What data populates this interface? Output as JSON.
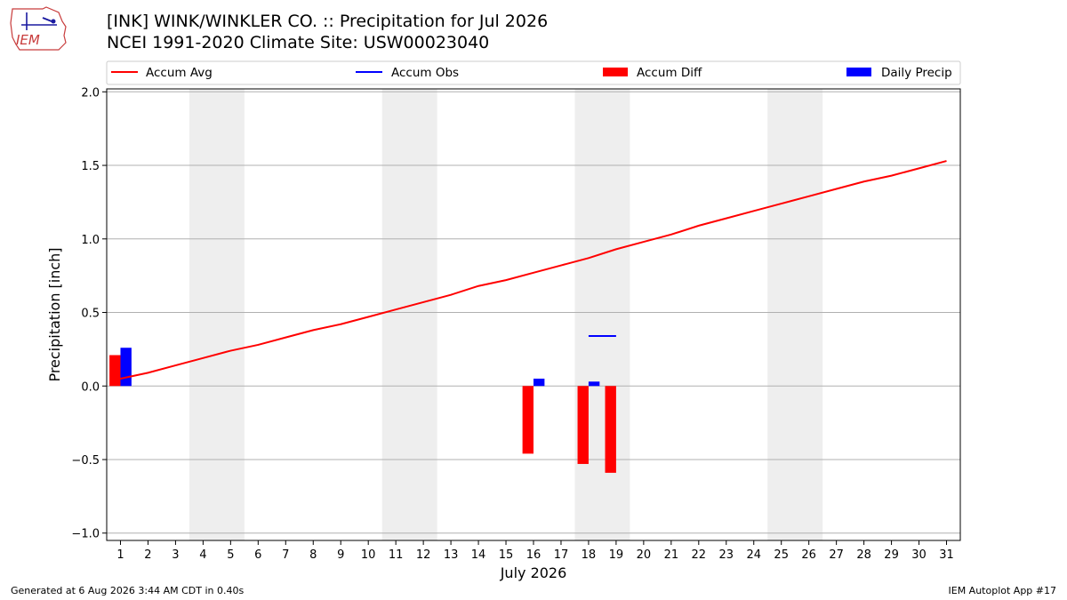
{
  "header": {
    "title_line1": "[INK] WINK/WINKLER CO. :: Precipitation for Jul 2026",
    "title_line2": "NCEI 1991-2020 Climate Site: USW00023040",
    "logo_text": "IEM"
  },
  "footer": {
    "generated": "Generated at 6 Aug 2026 3:44 AM CDT in 0.40s",
    "app": "IEM Autoplot App #17"
  },
  "colors": {
    "accum_avg": "#ff0000",
    "accum_obs": "#0000ff",
    "accum_diff": "#ff0000",
    "daily_precip": "#0000ff",
    "weekend": "#eeeeee",
    "grid": "#b0b0b0"
  },
  "chart_data": {
    "type": "bar",
    "xlabel": "July 2026",
    "ylabel": "Precipitation [inch]",
    "ylim": [
      -1.05,
      2.02
    ],
    "yticks": [
      -1.0,
      -0.5,
      0.0,
      0.5,
      1.0,
      1.5,
      2.0
    ],
    "ytick_labels": [
      "−1.0",
      "−0.5",
      "0.0",
      "0.5",
      "1.0",
      "1.5",
      "2.0"
    ],
    "xlim": [
      0.5,
      31.5
    ],
    "days": [
      1,
      2,
      3,
      4,
      5,
      6,
      7,
      8,
      9,
      10,
      11,
      12,
      13,
      14,
      15,
      16,
      17,
      18,
      19,
      20,
      21,
      22,
      23,
      24,
      25,
      26,
      27,
      28,
      29,
      30,
      31
    ],
    "weekend_spans": [
      [
        4,
        5
      ],
      [
        11,
        12
      ],
      [
        18,
        19
      ],
      [
        25,
        26
      ]
    ],
    "grid": "horizontal",
    "legend": {
      "placement": "top",
      "entries": [
        {
          "label": "Accum Avg",
          "kind": "line",
          "color": "#ff0000"
        },
        {
          "label": "Accum Obs",
          "kind": "line",
          "color": "#0000ff"
        },
        {
          "label": "Accum Diff",
          "kind": "bar",
          "color": "#ff0000"
        },
        {
          "label": "Daily Precip",
          "kind": "bar",
          "color": "#0000ff"
        }
      ]
    },
    "series": [
      {
        "name": "Accum Avg",
        "kind": "line",
        "x": [
          1,
          2,
          3,
          4,
          5,
          6,
          7,
          8,
          9,
          10,
          11,
          12,
          13,
          14,
          15,
          16,
          17,
          18,
          19,
          20,
          21,
          22,
          23,
          24,
          25,
          26,
          27,
          28,
          29,
          30,
          31
        ],
        "values": [
          0.05,
          0.09,
          0.14,
          0.19,
          0.24,
          0.28,
          0.33,
          0.38,
          0.42,
          0.47,
          0.52,
          0.57,
          0.62,
          0.68,
          0.72,
          0.77,
          0.82,
          0.87,
          0.93,
          0.98,
          1.03,
          1.09,
          1.14,
          1.19,
          1.24,
          1.29,
          1.34,
          1.39,
          1.43,
          1.48,
          1.53
        ]
      },
      {
        "name": "Accum Obs",
        "kind": "line",
        "x": [
          18,
          19
        ],
        "values": [
          0.34,
          0.34
        ]
      },
      {
        "name": "Accum Diff",
        "kind": "bar",
        "x": [
          1,
          16,
          18,
          19
        ],
        "values": [
          0.21,
          -0.46,
          -0.53,
          -0.59
        ]
      },
      {
        "name": "Daily Precip",
        "kind": "bar",
        "x": [
          1,
          16,
          18
        ],
        "values": [
          0.26,
          0.05,
          0.03
        ]
      }
    ]
  }
}
